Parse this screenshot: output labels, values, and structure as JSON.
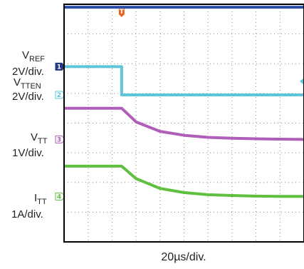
{
  "chart_data": {
    "type": "line",
    "timebase": "20µs/div.",
    "time_divisions": 10,
    "vertical_divisions": 8,
    "trigger_marker": "T",
    "colors": {
      "frame": "#000000",
      "grid": "#8c8c8c",
      "text": "#231f20",
      "trigger": "#e8661f"
    },
    "channels": [
      {
        "id": "1",
        "name": "V",
        "sub": "REF",
        "scale": "2V/div.",
        "color": "#2b4ea6",
        "marker_color": "#1f3784",
        "marker_level_div": 5.9,
        "x": [
          0,
          10
        ],
        "y_div": [
          7.9,
          7.9
        ]
      },
      {
        "id": "2",
        "name": "V",
        "sub": "TTEN",
        "scale": "2V/div.",
        "color": "#5ec5db",
        "marker_color": "#5ec5db",
        "marker_level_div": 4.95,
        "x": [
          0,
          2.4,
          2.4,
          10
        ],
        "y_div": [
          5.9,
          5.9,
          4.95,
          4.95
        ]
      },
      {
        "id": "3",
        "name": "V",
        "sub": "TT",
        "scale": "1V/div.",
        "color": "#b05fb8",
        "marker_color": "#b05fb8",
        "marker_level_div": 3.45,
        "x": [
          0,
          2.4,
          3.0,
          4.0,
          5.0,
          6.0,
          7.0,
          8.0,
          9.0,
          10
        ],
        "y_div": [
          4.5,
          4.5,
          4.04,
          3.72,
          3.59,
          3.52,
          3.49,
          3.47,
          3.46,
          3.45
        ]
      },
      {
        "id": "4",
        "name": "I",
        "sub": "TT",
        "scale": "1A/div.",
        "color": "#5fbf3f",
        "marker_color": "#5fbf3f",
        "marker_level_div": 1.53,
        "x": [
          0,
          2.4,
          3.0,
          4.0,
          5.0,
          6.0,
          7.0,
          8.0,
          9.0,
          10
        ],
        "y_div": [
          2.55,
          2.55,
          2.13,
          1.8,
          1.66,
          1.59,
          1.56,
          1.54,
          1.53,
          1.53
        ]
      }
    ]
  }
}
